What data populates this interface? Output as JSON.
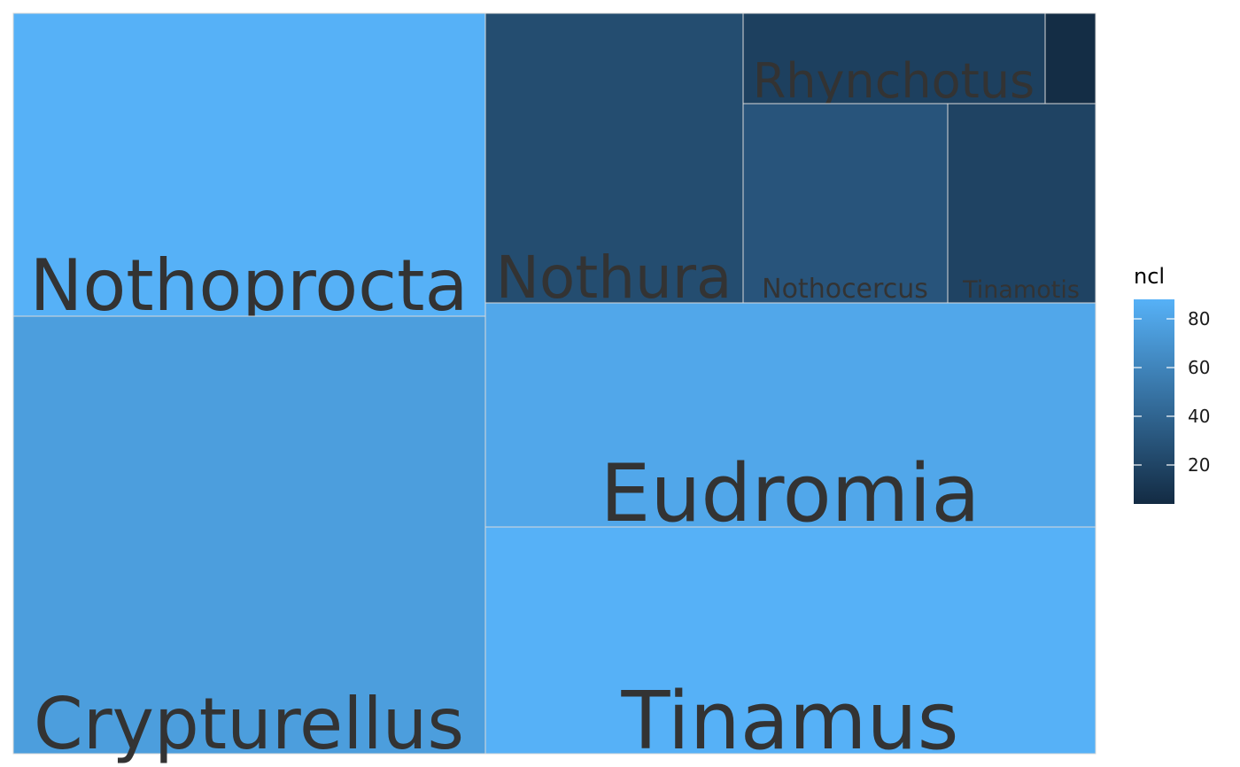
{
  "chart_data": {
    "type": "treemap",
    "fill_variable": "ncl",
    "legend": {
      "title": "ncl",
      "placement": "right",
      "ticks": [
        20,
        40,
        60,
        80
      ],
      "range": [
        4,
        88
      ],
      "gradient_low": "#132b43",
      "gradient_high": "#56b1f7"
    },
    "tiles": [
      {
        "label": "Nothoprocta",
        "ncl": 88
      },
      {
        "label": "Crypturellus",
        "ncl": 76
      },
      {
        "label": "Nothura",
        "ncl": 25
      },
      {
        "label": "Rhynchotus",
        "ncl": 17
      },
      {
        "label": "",
        "ncl": 5
      },
      {
        "label": "Nothocercus",
        "ncl": 30
      },
      {
        "label": "Tinamotis",
        "ncl": 19
      },
      {
        "label": "Eudromia",
        "ncl": 82
      },
      {
        "label": "Tinamus",
        "ncl": 88
      }
    ]
  }
}
